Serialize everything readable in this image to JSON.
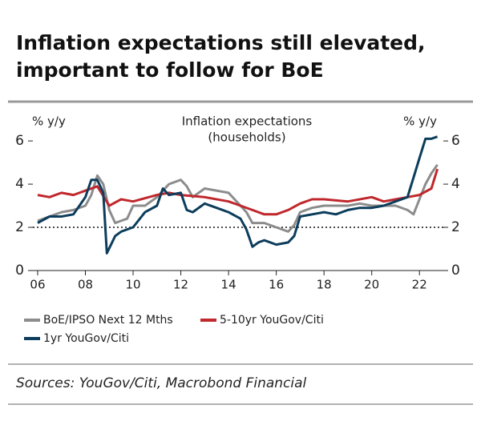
{
  "chart_data": {
    "type": "line",
    "title": [
      "Inflation expectations still elevated,",
      "important to follow for BoE"
    ],
    "subtitle": [
      "Inflation expectations",
      "(households)"
    ],
    "ylabel": "% y/y",
    "y2label": "% y/y",
    "xlim": [
      2005.8,
      2023
    ],
    "xticks": [
      {
        "value": 2006,
        "label": "06"
      },
      {
        "value": 2008,
        "label": "08"
      },
      {
        "value": 2010,
        "label": "10"
      },
      {
        "value": 2012,
        "label": "12"
      },
      {
        "value": 2014,
        "label": "14"
      },
      {
        "value": 2016,
        "label": "16"
      },
      {
        "value": 2018,
        "label": "18"
      },
      {
        "value": 2020,
        "label": "20"
      },
      {
        "value": 2022,
        "label": "22"
      }
    ],
    "ylim": [
      0,
      6.3
    ],
    "yticks": [
      0,
      2,
      4,
      6
    ],
    "y2lim": [
      0,
      6.3
    ],
    "y2ticks": [
      0,
      2,
      4,
      6
    ],
    "hline": 2,
    "series": [
      {
        "name": "BoE/IPSO Next 12 Mths",
        "color": "#8c8c8c",
        "x": [
          2006,
          2006.5,
          2007,
          2007.5,
          2008,
          2008.25,
          2008.5,
          2008.75,
          2009,
          2009.25,
          2009.5,
          2009.75,
          2010,
          2010.5,
          2011,
          2011.25,
          2011.5,
          2011.75,
          2012,
          2012.25,
          2012.5,
          2013,
          2013.5,
          2014,
          2014.5,
          2014.75,
          2015,
          2015.5,
          2016,
          2016.5,
          2016.75,
          2017,
          2017.5,
          2018,
          2018.5,
          2019,
          2019.5,
          2020,
          2020.5,
          2021,
          2021.5,
          2021.75,
          2022,
          2022.25,
          2022.5,
          2022.75
        ],
        "values": [
          2.3,
          2.5,
          2.7,
          2.8,
          3.0,
          3.5,
          4.4,
          4.0,
          2.8,
          2.2,
          2.3,
          2.4,
          3.0,
          3.0,
          3.4,
          3.7,
          4.0,
          4.1,
          4.2,
          3.9,
          3.4,
          3.8,
          3.7,
          3.6,
          3.0,
          2.7,
          2.2,
          2.2,
          2.0,
          1.8,
          2.1,
          2.7,
          2.9,
          3.0,
          3.0,
          3.0,
          3.1,
          3.0,
          3.0,
          3.0,
          2.8,
          2.6,
          3.3,
          4.0,
          4.5,
          4.9
        ]
      },
      {
        "name": "5-10yr YouGov/Citi",
        "color": "#c0282d",
        "x": [
          2006,
          2006.5,
          2007,
          2007.5,
          2008,
          2008.5,
          2009,
          2009.5,
          2010,
          2011,
          2011.5,
          2012,
          2013,
          2014,
          2014.5,
          2015,
          2015.5,
          2016,
          2016.5,
          2017,
          2017.5,
          2018,
          2019,
          2020,
          2020.5,
          2021,
          2021.5,
          2022,
          2022.5,
          2022.75
        ],
        "values": [
          3.5,
          3.4,
          3.6,
          3.5,
          3.7,
          3.9,
          3.0,
          3.3,
          3.2,
          3.5,
          3.6,
          3.5,
          3.4,
          3.2,
          3.0,
          2.8,
          2.6,
          2.6,
          2.8,
          3.1,
          3.3,
          3.3,
          3.2,
          3.4,
          3.2,
          3.3,
          3.4,
          3.5,
          3.8,
          4.7
        ]
      },
      {
        "name": "1yr YouGov/Citi",
        "color": "#0d3d5c",
        "x": [
          2006,
          2006.5,
          2007,
          2007.5,
          2008,
          2008.25,
          2008.5,
          2008.75,
          2008.9,
          2009.25,
          2009.5,
          2010,
          2010.5,
          2011,
          2011.25,
          2011.5,
          2012,
          2012.25,
          2012.5,
          2013,
          2013.5,
          2014,
          2014.5,
          2014.75,
          2015,
          2015.25,
          2015.5,
          2016,
          2016.5,
          2016.75,
          2017,
          2017.5,
          2018,
          2018.5,
          2019,
          2019.5,
          2020,
          2020.5,
          2021,
          2021.5,
          2021.75,
          2022,
          2022.25,
          2022.5,
          2022.75
        ],
        "values": [
          2.2,
          2.5,
          2.5,
          2.6,
          3.4,
          4.2,
          4.2,
          3.6,
          0.8,
          1.6,
          1.8,
          2.0,
          2.7,
          3.0,
          3.8,
          3.5,
          3.6,
          2.8,
          2.7,
          3.1,
          2.9,
          2.7,
          2.4,
          1.9,
          1.1,
          1.3,
          1.4,
          1.2,
          1.3,
          1.6,
          2.5,
          2.6,
          2.7,
          2.6,
          2.8,
          2.9,
          2.9,
          3.0,
          3.2,
          3.4,
          4.3,
          5.2,
          6.1,
          6.1,
          6.2
        ]
      }
    ],
    "source": "Sources: YouGov/Citi, Macrobond Financial"
  }
}
